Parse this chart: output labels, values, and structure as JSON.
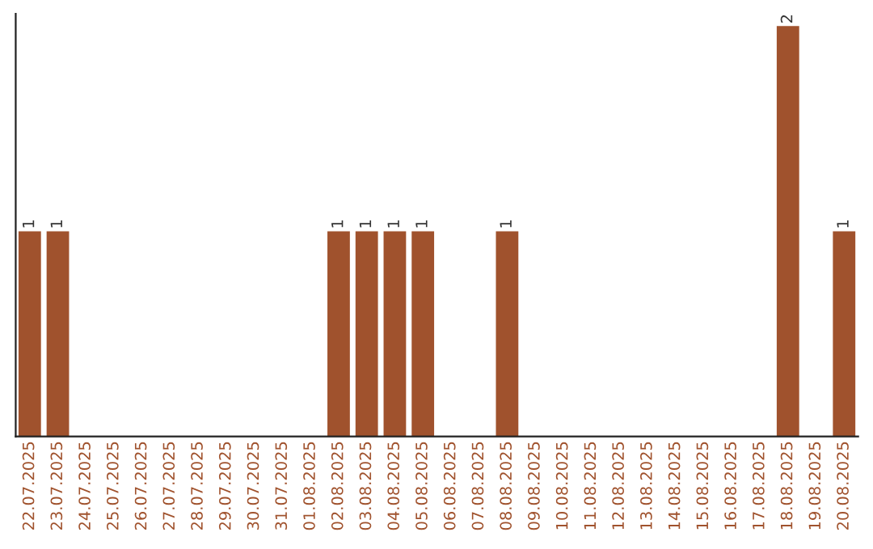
{
  "chart_data": {
    "type": "bar",
    "categories": [
      "22.07.2025",
      "23.07.2025",
      "24.07.2025",
      "25.07.2025",
      "26.07.2025",
      "27.07.2025",
      "28.07.2025",
      "29.07.2025",
      "30.07.2025",
      "31.07.2025",
      "01.08.2025",
      "02.08.2025",
      "03.08.2025",
      "04.08.2025",
      "05.08.2025",
      "06.08.2025",
      "07.08.2025",
      "08.08.2025",
      "09.08.2025",
      "10.08.2025",
      "11.08.2025",
      "12.08.2025",
      "13.08.2025",
      "14.08.2025",
      "15.08.2025",
      "16.08.2025",
      "17.08.2025",
      "18.08.2025",
      "19.08.2025",
      "20.08.2025"
    ],
    "values": [
      1,
      1,
      0,
      0,
      0,
      0,
      0,
      0,
      0,
      0,
      0,
      1,
      1,
      1,
      1,
      0,
      0,
      1,
      0,
      0,
      0,
      0,
      0,
      0,
      0,
      0,
      0,
      2,
      0,
      1
    ],
    "value_labels": [
      "1",
      "1",
      null,
      null,
      null,
      null,
      null,
      null,
      null,
      null,
      null,
      "1",
      "1",
      "1",
      "1",
      null,
      null,
      "1",
      null,
      null,
      null,
      null,
      null,
      null,
      null,
      null,
      null,
      "2",
      null,
      "1"
    ],
    "color": "#a0522d",
    "tick_labels": "x",
    "grid": false,
    "legend": false
  }
}
